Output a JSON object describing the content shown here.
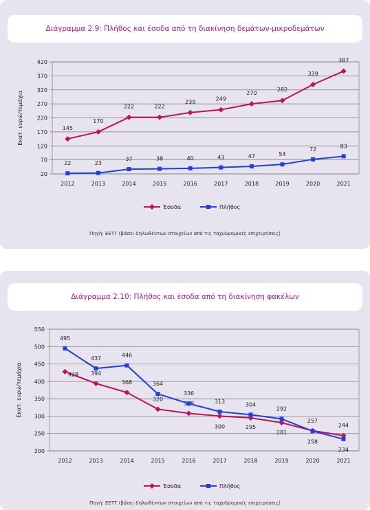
{
  "chart_data": [
    {
      "type": "line",
      "title": "Διάγραμμα 2.9: Πλήθος και έσοδα από τη διακίνηση δεμάτων-μικροδεμάτων",
      "xlabel": "",
      "ylabel": "Εκατ. ευρώ/τεμάχια",
      "categories": [
        "2012",
        "2013",
        "2014",
        "2015",
        "2016",
        "2017",
        "2018",
        "2019",
        "2020",
        "2021"
      ],
      "yticks": [
        20,
        70,
        120,
        170,
        220,
        270,
        320,
        370,
        420
      ],
      "ylim": [
        20,
        420
      ],
      "grid": true,
      "legend_position": "bottom",
      "source": "Πηγή: ΕΕΤΤ (βάσει δηλωθέντων στοιχείων από τις ταχυδρομικές επιχειρήσεις)",
      "series": [
        {
          "name": "Έσοδα",
          "color": "#c0125a",
          "marker": "diamond",
          "values": [
            145,
            170,
            222,
            222,
            239,
            249,
            270,
            282,
            339,
            387
          ]
        },
        {
          "name": "Πλήθος",
          "color": "#1f3fe0",
          "marker": "square",
          "values": [
            22,
            23,
            37,
            38,
            40,
            43,
            47,
            54,
            72,
            83
          ]
        }
      ]
    },
    {
      "type": "line",
      "title": "Διάγραμμα 2.10: Πλήθος και έσοδα από τη διακίνηση φακέλων",
      "xlabel": "",
      "ylabel": "Εκατ. ευρώ/τεμάχια",
      "categories": [
        "2012",
        "2013",
        "2014",
        "2015",
        "2016",
        "2017",
        "2018",
        "2019",
        "2020",
        "2021"
      ],
      "yticks": [
        200,
        250,
        300,
        350,
        400,
        450,
        500,
        550
      ],
      "ylim": [
        200,
        550
      ],
      "grid": true,
      "legend_position": "bottom",
      "source": "Πηγή: ΕΕΤΤ (βάσει δηλωθέντων στοιχείων από τις ταχυδρομικές επιχειρήσεις)",
      "series": [
        {
          "name": "Έσοδα",
          "color": "#c0125a",
          "marker": "diamond",
          "values": [
            428,
            394,
            368,
            320,
            308,
            300,
            295,
            281,
            258,
            244
          ]
        },
        {
          "name": "Πλήθος",
          "color": "#1f3fe0",
          "marker": "square",
          "values": [
            495,
            437,
            446,
            364,
            336,
            313,
            304,
            292,
            257,
            234
          ]
        }
      ]
    }
  ]
}
